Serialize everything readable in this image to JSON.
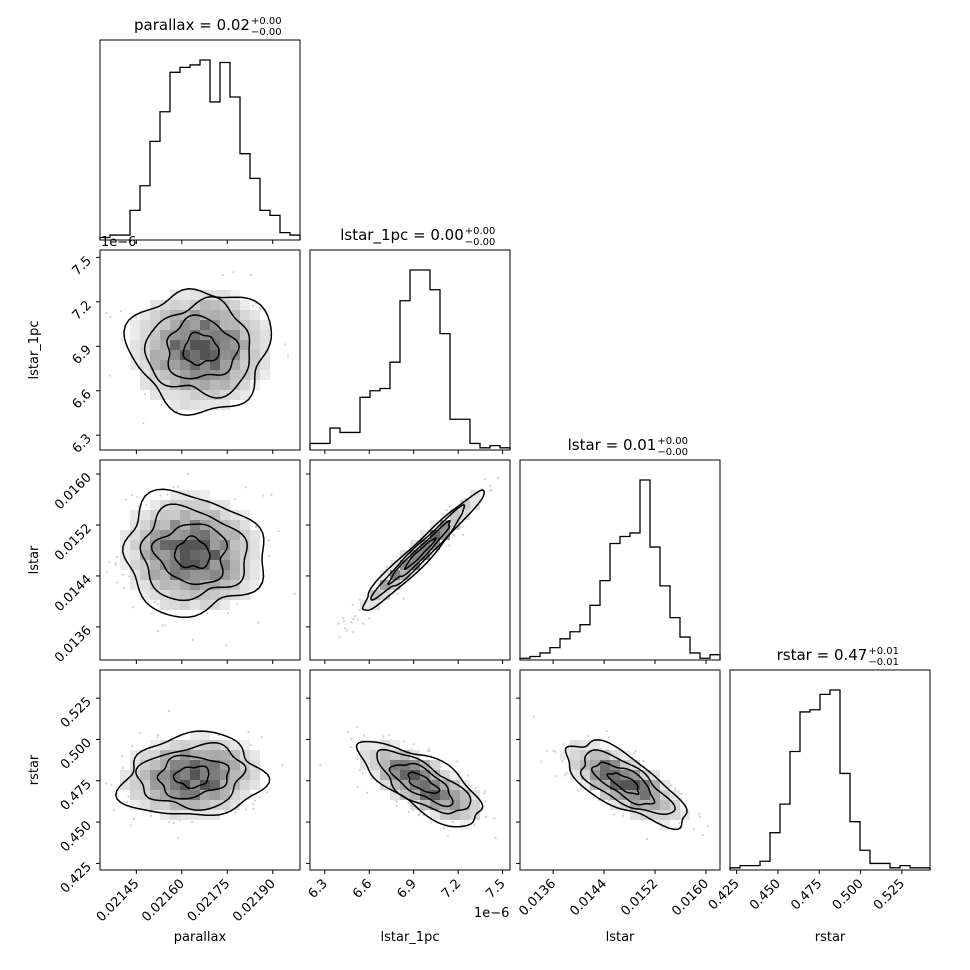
{
  "chart_data": {
    "type": "corner",
    "parameters": [
      "parallax",
      "lstar_1pc",
      "lstar",
      "rstar"
    ],
    "titles": [
      {
        "param": "parallax",
        "prefix": "parallax = 0.02",
        "upper": "+0.00",
        "lower": "−0.00"
      },
      {
        "param": "lstar_1pc",
        "prefix": "lstar_1pc = 0.00",
        "upper": "+0.00",
        "lower": "−0.00"
      },
      {
        "param": "lstar",
        "prefix": "lstar = 0.01",
        "upper": "+0.00",
        "lower": "−0.00"
      },
      {
        "param": "rstar",
        "prefix": "rstar = 0.47",
        "upper": "+0.01",
        "lower": "−0.01"
      }
    ],
    "axes": {
      "parallax": {
        "range": [
          0.02133,
          0.02199
        ],
        "ticks": [
          0.02145,
          0.0216,
          0.02175,
          0.0219
        ],
        "tick_labels": [
          "0.02145",
          "0.02160",
          "0.02175",
          "0.02190"
        ]
      },
      "lstar_1pc": {
        "offset_label": "1e−6",
        "range": [
          6.2,
          7.55
        ],
        "ticks": [
          6.3,
          6.6,
          6.9,
          7.2,
          7.5
        ],
        "tick_labels": [
          "6.3",
          "6.6",
          "6.9",
          "7.2",
          "7.5"
        ]
      },
      "lstar": {
        "range": [
          0.01308,
          0.01622
        ],
        "ticks": [
          0.0136,
          0.0144,
          0.0152,
          0.016
        ],
        "tick_labels": [
          "0.0136",
          "0.0144",
          "0.0152",
          "0.0160"
        ]
      },
      "rstar": {
        "range": [
          0.421,
          0.542
        ],
        "ticks": [
          0.425,
          0.45,
          0.475,
          0.5,
          0.525
        ],
        "tick_labels": [
          "0.425",
          "0.450",
          "0.475",
          "0.500",
          "0.525"
        ]
      }
    },
    "histograms": {
      "parallax": [
        1,
        2,
        2,
        12,
        22,
        40,
        52,
        68,
        70,
        71,
        73,
        56,
        72,
        58,
        35,
        25,
        12,
        10,
        3,
        2
      ],
      "lstar_1pc": [
        3,
        3,
        10,
        8,
        8,
        24,
        27,
        28,
        40,
        68,
        82,
        82,
        73,
        53,
        14,
        14,
        3,
        1,
        2,
        1
      ],
      "lstar": [
        1,
        2,
        4,
        7,
        12,
        16,
        20,
        31,
        45,
        66,
        70,
        72,
        102,
        64,
        42,
        24,
        13,
        4,
        1,
        3
      ],
      "rstar": [
        1,
        2,
        2,
        4,
        17,
        30,
        54,
        72,
        73,
        80,
        82,
        44,
        22,
        9,
        3,
        3,
        1,
        2,
        1,
        1
      ]
    },
    "contour_levels_sigma": [
      0.5,
      1.0,
      1.5,
      2.0
    ],
    "pairs": [
      {
        "x": "parallax",
        "y": "lstar_1pc",
        "mean": [
          0.021662,
          6.88
        ],
        "sd": [
          0.000115,
          0.205
        ],
        "corr": 0.0
      },
      {
        "x": "parallax",
        "y": "lstar",
        "mean": [
          0.021635,
          0.01475
        ],
        "sd": [
          0.000115,
          0.00047
        ],
        "corr": -0.05
      },
      {
        "x": "lstar_1pc",
        "y": "lstar",
        "mean": [
          6.94,
          0.01475
        ],
        "sd": [
          0.205,
          0.00047
        ],
        "corr": 0.97
      },
      {
        "x": "parallax",
        "y": "rstar",
        "mean": [
          0.021635,
          0.4775
        ],
        "sd": [
          0.000115,
          0.0125
        ],
        "corr": 0.1
      },
      {
        "x": "lstar_1pc",
        "y": "rstar",
        "mean": [
          6.96,
          0.4735
        ],
        "sd": [
          0.205,
          0.0125
        ],
        "corr": -0.72
      },
      {
        "x": "lstar",
        "y": "rstar",
        "mean": [
          0.01472,
          0.4735
        ],
        "sd": [
          0.00047,
          0.0125
        ],
        "corr": -0.72
      }
    ]
  }
}
